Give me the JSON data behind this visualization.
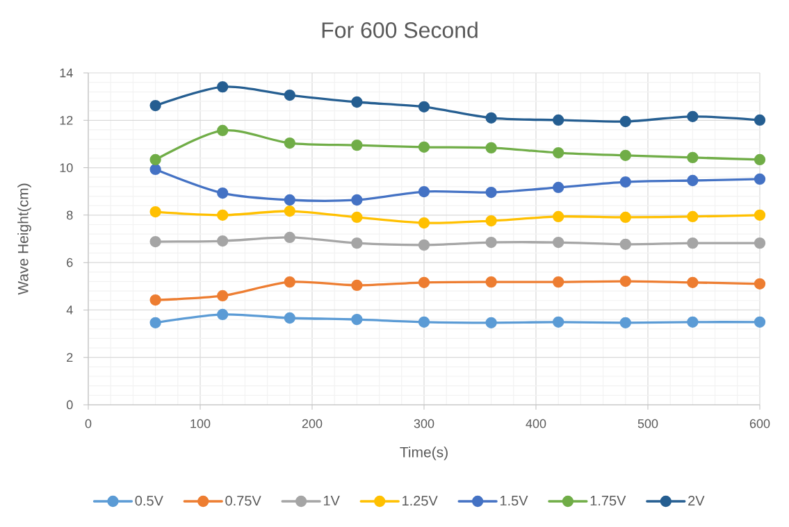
{
  "chart_data": {
    "type": "line",
    "title": "For 600 Second",
    "xlabel": "Time(s)",
    "ylabel": "Wave Height(cm)",
    "x": [
      60,
      120,
      180,
      240,
      300,
      360,
      420,
      480,
      540,
      600
    ],
    "xlim": [
      0,
      600
    ],
    "xticks": [
      0,
      100,
      200,
      300,
      400,
      500,
      600
    ],
    "ylim": [
      0,
      14
    ],
    "yticks": [
      0,
      2,
      4,
      6,
      8,
      10,
      12,
      14
    ],
    "grid": true,
    "legend": "bottom",
    "marker": "circle",
    "series": [
      {
        "name": "0.5V",
        "color": "#5b9bd5",
        "values": [
          3.46,
          3.81,
          3.66,
          3.6,
          3.49,
          3.46,
          3.49,
          3.46,
          3.49,
          3.49
        ]
      },
      {
        "name": "0.75V",
        "color": "#ed7d31",
        "values": [
          4.42,
          4.6,
          5.18,
          5.04,
          5.16,
          5.18,
          5.18,
          5.21,
          5.16,
          5.1
        ]
      },
      {
        "name": "1V",
        "color": "#a5a5a5",
        "values": [
          6.88,
          6.91,
          7.06,
          6.82,
          6.74,
          6.85,
          6.85,
          6.77,
          6.82,
          6.82
        ]
      },
      {
        "name": "1.25V",
        "color": "#ffc000",
        "values": [
          8.14,
          8.0,
          8.17,
          7.91,
          7.67,
          7.76,
          7.94,
          7.91,
          7.94,
          8.0
        ]
      },
      {
        "name": "1.5V",
        "color": "#4472c4",
        "values": [
          9.93,
          8.93,
          8.64,
          8.64,
          8.99,
          8.96,
          9.17,
          9.4,
          9.46,
          9.52
        ]
      },
      {
        "name": "1.75V",
        "color": "#70ad47",
        "values": [
          10.34,
          11.57,
          11.04,
          10.95,
          10.87,
          10.84,
          10.63,
          10.52,
          10.43,
          10.34
        ]
      },
      {
        "name": "2V",
        "color": "#255e91",
        "values": [
          12.62,
          13.41,
          13.06,
          12.77,
          12.57,
          12.1,
          12.01,
          11.95,
          12.16,
          12.01
        ]
      }
    ]
  }
}
